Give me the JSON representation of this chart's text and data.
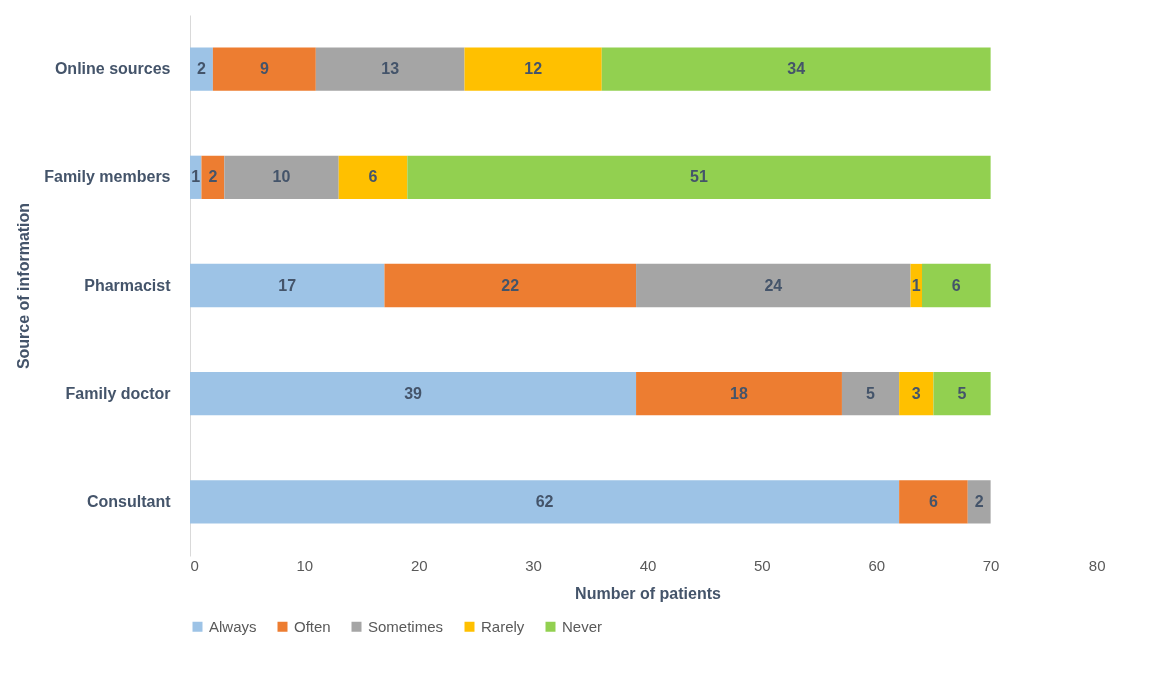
{
  "chart_data": {
    "type": "bar",
    "orientation": "horizontal",
    "stacked": true,
    "data_labels": true,
    "categories": [
      "Online sources",
      "Family members",
      "Pharmacist",
      "Family doctor",
      "Consultant"
    ],
    "series": [
      {
        "name": "Always",
        "color": "#9dc3e6",
        "values": [
          2,
          1,
          17,
          39,
          62
        ]
      },
      {
        "name": "Often",
        "color": "#ed7d31",
        "values": [
          9,
          2,
          22,
          18,
          6
        ]
      },
      {
        "name": "Sometimes",
        "color": "#a5a5a5",
        "values": [
          13,
          10,
          24,
          5,
          2
        ]
      },
      {
        "name": "Rarely",
        "color": "#ffc000",
        "values": [
          12,
          6,
          1,
          3,
          null
        ]
      },
      {
        "name": "Never",
        "color": "#92d050",
        "values": [
          34,
          51,
          6,
          5,
          null
        ]
      }
    ],
    "xlim": [
      0,
      80
    ],
    "xticks": [
      0,
      10,
      20,
      30,
      40,
      50,
      60,
      70,
      80
    ],
    "xlabel": "Number of patients",
    "ylabel": "Source of information",
    "grid": false,
    "legend": "bottom"
  }
}
